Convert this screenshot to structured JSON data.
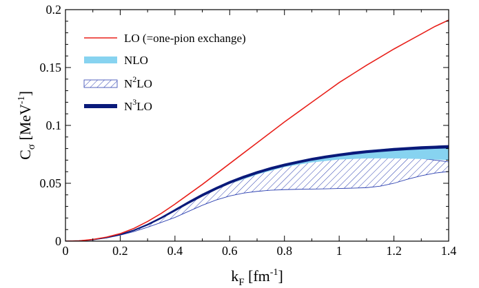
{
  "chart_data": {
    "type": "line",
    "xlabel": {
      "main": "k",
      "sub": "F",
      "unit_pre": " [fm",
      "unit_sup": "-1",
      "unit_post": "]"
    },
    "ylabel": {
      "main": "C",
      "sub": "σ",
      "unit_pre": " [MeV",
      "unit_sup": "-1",
      "unit_post": "]"
    },
    "xlim": [
      0,
      1.4
    ],
    "ylim": [
      0,
      0.2
    ],
    "xticks": [
      0,
      0.2,
      0.4,
      0.6,
      0.8,
      1,
      1.2,
      1.4
    ],
    "xtick_labels": [
      "0",
      "0.2",
      "0.4",
      "0.6",
      "0.8",
      "1",
      "1.2",
      "1.4"
    ],
    "yticks": [
      0,
      0.05,
      0.1,
      0.15,
      0.2
    ],
    "ytick_labels": [
      "0",
      "0.05",
      "0.1",
      "0.15",
      "0.2"
    ],
    "grid": false,
    "legend_position": "top-left",
    "legend": [
      {
        "key": "LO",
        "label": "LO (=one-pion exchange)",
        "color": "#e8201a",
        "style": "line"
      },
      {
        "key": "NLO",
        "label": "NLO",
        "color": "#87d3f0",
        "style": "band"
      },
      {
        "key": "N2LO",
        "label_pre": "N",
        "label_sup": "2",
        "label_post": "LO",
        "color": "#2b3fb0",
        "style": "hatched-band"
      },
      {
        "key": "N3LO",
        "label_pre": "N",
        "label_sup": "3",
        "label_post": "LO",
        "color": "#0a1a7a",
        "style": "thick-line"
      }
    ],
    "series": [
      {
        "key": "LO",
        "x": [
          0,
          0.05,
          0.1,
          0.15,
          0.2,
          0.25,
          0.3,
          0.35,
          0.4,
          0.45,
          0.5,
          0.55,
          0.6,
          0.65,
          0.7,
          0.75,
          0.8,
          0.85,
          0.9,
          0.95,
          1.0,
          1.05,
          1.1,
          1.15,
          1.2,
          1.25,
          1.3,
          1.35,
          1.4
        ],
        "y": [
          0,
          0.0003,
          0.0015,
          0.0035,
          0.0065,
          0.011,
          0.017,
          0.024,
          0.032,
          0.0405,
          0.049,
          0.058,
          0.067,
          0.076,
          0.085,
          0.094,
          0.103,
          0.1115,
          0.12,
          0.1285,
          0.137,
          0.1445,
          0.152,
          0.159,
          0.166,
          0.1725,
          0.179,
          0.1855,
          0.191
        ]
      },
      {
        "key": "NLO",
        "x": [
          0.6,
          0.7,
          0.8,
          0.9,
          1.0,
          1.1,
          1.2,
          1.3,
          1.4
        ],
        "upper": [
          0.049,
          0.0585,
          0.066,
          0.0715,
          0.0755,
          0.0785,
          0.0805,
          0.0815,
          0.082
        ],
        "lower": [
          0.049,
          0.0575,
          0.064,
          0.068,
          0.0705,
          0.0715,
          0.0715,
          0.071,
          0.07
        ]
      },
      {
        "key": "N2LO",
        "x": [
          0,
          0.05,
          0.1,
          0.15,
          0.2,
          0.25,
          0.3,
          0.35,
          0.4,
          0.45,
          0.5,
          0.55,
          0.6,
          0.65,
          0.7,
          0.75,
          0.8,
          0.85,
          0.9,
          0.95,
          1.0,
          1.05,
          1.1,
          1.15,
          1.2,
          1.25,
          1.3,
          1.35,
          1.4
        ],
        "upper": [
          0,
          0.0003,
          0.0012,
          0.003,
          0.0058,
          0.0095,
          0.0145,
          0.0205,
          0.027,
          0.0335,
          0.0395,
          0.045,
          0.05,
          0.0545,
          0.0585,
          0.062,
          0.065,
          0.0678,
          0.07,
          0.0718,
          0.073,
          0.0738,
          0.0742,
          0.0742,
          0.0738,
          0.0728,
          0.0715,
          0.07,
          0.0685
        ],
        "lower": [
          0,
          0.0003,
          0.0012,
          0.0028,
          0.0052,
          0.0082,
          0.012,
          0.0162,
          0.0205,
          0.0258,
          0.031,
          0.0355,
          0.039,
          0.0415,
          0.043,
          0.044,
          0.0445,
          0.0448,
          0.045,
          0.0452,
          0.0455,
          0.0458,
          0.0462,
          0.0475,
          0.05,
          0.0535,
          0.0565,
          0.0588,
          0.0602
        ]
      },
      {
        "key": "N3LO",
        "x": [
          0,
          0.05,
          0.1,
          0.15,
          0.2,
          0.25,
          0.3,
          0.35,
          0.4,
          0.45,
          0.5,
          0.55,
          0.6,
          0.65,
          0.7,
          0.75,
          0.8,
          0.85,
          0.9,
          0.95,
          1.0,
          1.05,
          1.1,
          1.15,
          1.2,
          1.25,
          1.3,
          1.35,
          1.4
        ],
        "upper": [
          0,
          0.0003,
          0.0012,
          0.003,
          0.0058,
          0.0095,
          0.0145,
          0.0205,
          0.0272,
          0.034,
          0.0405,
          0.0462,
          0.0515,
          0.056,
          0.06,
          0.0635,
          0.0665,
          0.069,
          0.0715,
          0.0735,
          0.0752,
          0.0768,
          0.078,
          0.079,
          0.08,
          0.0808,
          0.0815,
          0.082,
          0.0825
        ],
        "lower": [
          0,
          0.0003,
          0.0012,
          0.003,
          0.0056,
          0.0092,
          0.014,
          0.0198,
          0.0262,
          0.0328,
          0.039,
          0.0448,
          0.05,
          0.0545,
          0.0585,
          0.062,
          0.065,
          0.0676,
          0.07,
          0.072,
          0.0737,
          0.0752,
          0.0765,
          0.0775,
          0.0784,
          0.0791,
          0.0797,
          0.0802,
          0.0806
        ]
      }
    ]
  }
}
